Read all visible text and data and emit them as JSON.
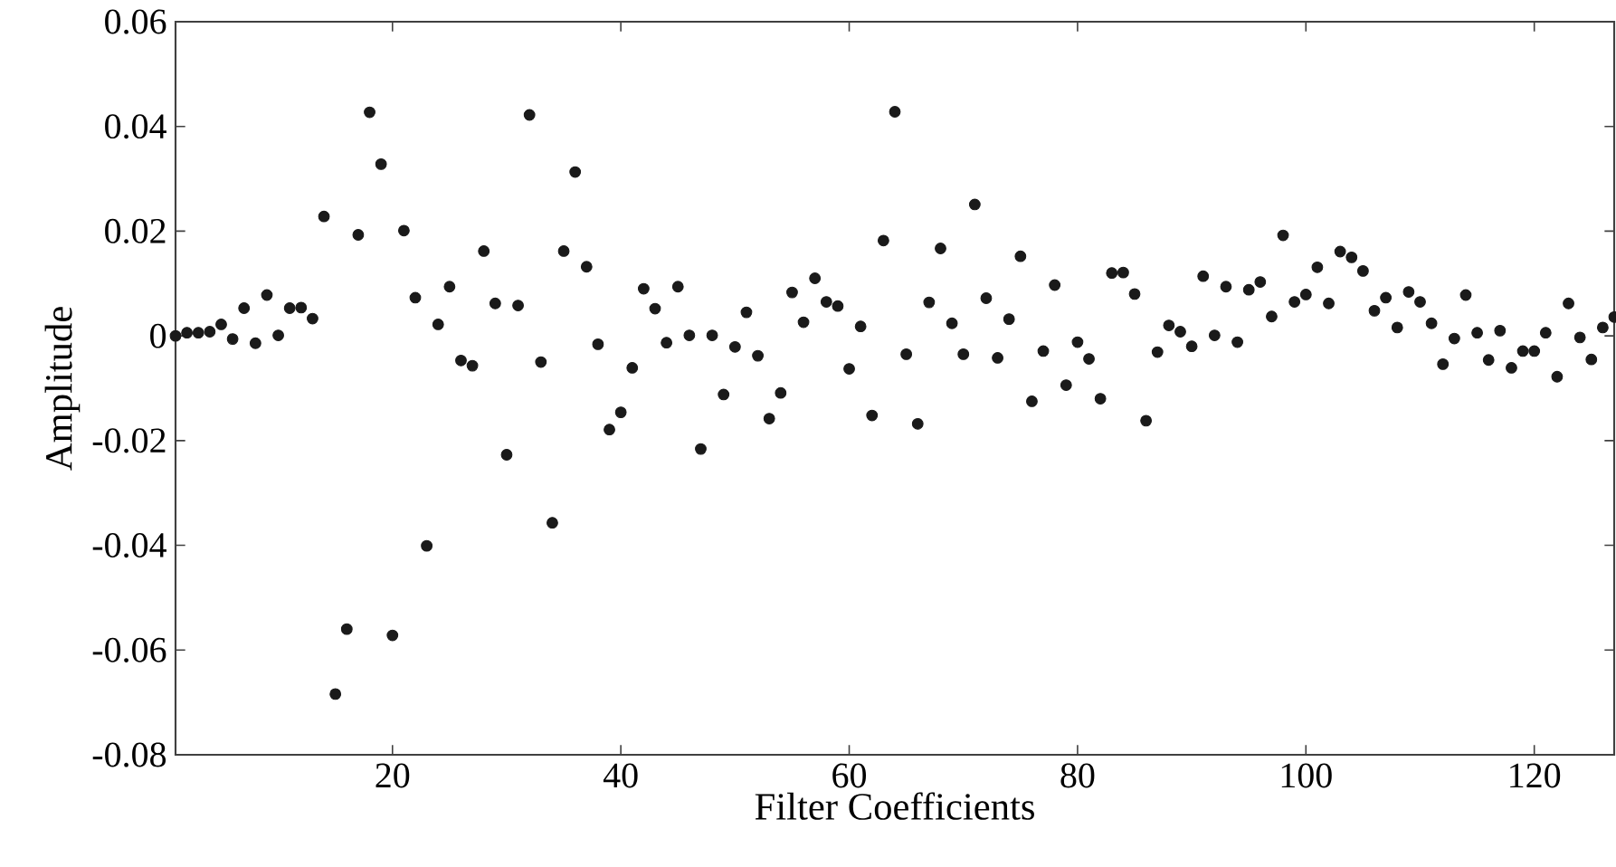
{
  "chart_data": {
    "type": "scatter",
    "xlabel": "Filter Coefficients",
    "ylabel": "Amplitude",
    "x": [
      1,
      2,
      3,
      4,
      5,
      6,
      7,
      8,
      9,
      10,
      11,
      12,
      13,
      14,
      15,
      16,
      17,
      18,
      19,
      20,
      21,
      22,
      23,
      24,
      25,
      26,
      27,
      28,
      29,
      30,
      31,
      32,
      33,
      34,
      35,
      36,
      37,
      38,
      39,
      40,
      41,
      42,
      43,
      44,
      45,
      46,
      47,
      48,
      49,
      50,
      51,
      52,
      53,
      54,
      55,
      56,
      57,
      58,
      59,
      60,
      61,
      62,
      63,
      64,
      65,
      66,
      67,
      68,
      69,
      70,
      71,
      72,
      73,
      74,
      75,
      76,
      77,
      78,
      79,
      80,
      81,
      82,
      83,
      84,
      85,
      86,
      87,
      88,
      89,
      90,
      91,
      92,
      93,
      94,
      95,
      96,
      97,
      98,
      99,
      100,
      101,
      102,
      103,
      104,
      105,
      106,
      107,
      108,
      109,
      110,
      111,
      112,
      113,
      114,
      115,
      116,
      117,
      118,
      119,
      120,
      121,
      122,
      123,
      124,
      125,
      126,
      127
    ],
    "series": [
      {
        "color": "#1a1a1a",
        "values": [
          0,
          0.0006,
          0.0006,
          0.0008,
          0.0022,
          -0.0006,
          0.0053,
          -0.0014,
          0.0078,
          0.0001,
          0.0053,
          0.0054,
          0.0033,
          0.0228,
          -0.0684,
          -0.056,
          0.0193,
          0.0427,
          0.0328,
          -0.0572,
          0.0201,
          0.0073,
          -0.0401,
          0.0022,
          0.0094,
          -0.0047,
          -0.0057,
          0.0162,
          0.0062,
          -0.0227,
          0.0058,
          0.0422,
          -0.005,
          -0.0357,
          0.0162,
          0.0313,
          0.0132,
          -0.0016,
          -0.0179,
          -0.0146,
          -0.0061,
          0.009,
          0.0052,
          -0.0013,
          0.0094,
          0.0001,
          -0.0216,
          0.0001,
          -0.0112,
          -0.0021,
          0.0045,
          -0.0038,
          -0.0158,
          -0.0109,
          0.0083,
          0.0026,
          0.011,
          0.0065,
          0.0057,
          -0.0063,
          0.0018,
          -0.0152,
          0.0182,
          0.0428,
          -0.0035,
          -0.0168,
          0.0064,
          0.0167,
          0.0024,
          -0.0035,
          0.0251,
          0.0072,
          -0.0042,
          0.0032,
          0.0152,
          -0.0125,
          -0.0029,
          0.0097,
          -0.0094,
          -0.0012,
          -0.0044,
          -0.012,
          0.012,
          0.0121,
          0.008,
          -0.0162,
          -0.0031,
          0.002,
          0.0008,
          -0.002,
          0.0114,
          0.0001,
          0.0094,
          -0.0012,
          0.0088,
          0.0103,
          0.0037,
          0.0192,
          0.0065,
          0.0079,
          0.0131,
          0.0062,
          0.0161,
          0.015,
          0.0124,
          0.0048,
          0.0073,
          0.0016,
          0.0084,
          0.0065,
          0.0024,
          -0.0054,
          -0.0005,
          0.0078,
          0.0006,
          -0.0046,
          0.001,
          -0.0061,
          -0.0029,
          -0.0029,
          0.0006,
          -0.0078,
          0.0062,
          -0.0003,
          -0.0045,
          0.0016,
          0.0036
        ]
      }
    ],
    "xlim": [
      1,
      127
    ],
    "ylim": [
      -0.08,
      0.06
    ],
    "xticks": [
      20,
      40,
      60,
      80,
      100,
      120
    ],
    "yticks": [
      -0.08,
      -0.06,
      -0.04,
      -0.02,
      0,
      0.02,
      0.04,
      0.06
    ],
    "marker": "circle",
    "grid": false
  }
}
